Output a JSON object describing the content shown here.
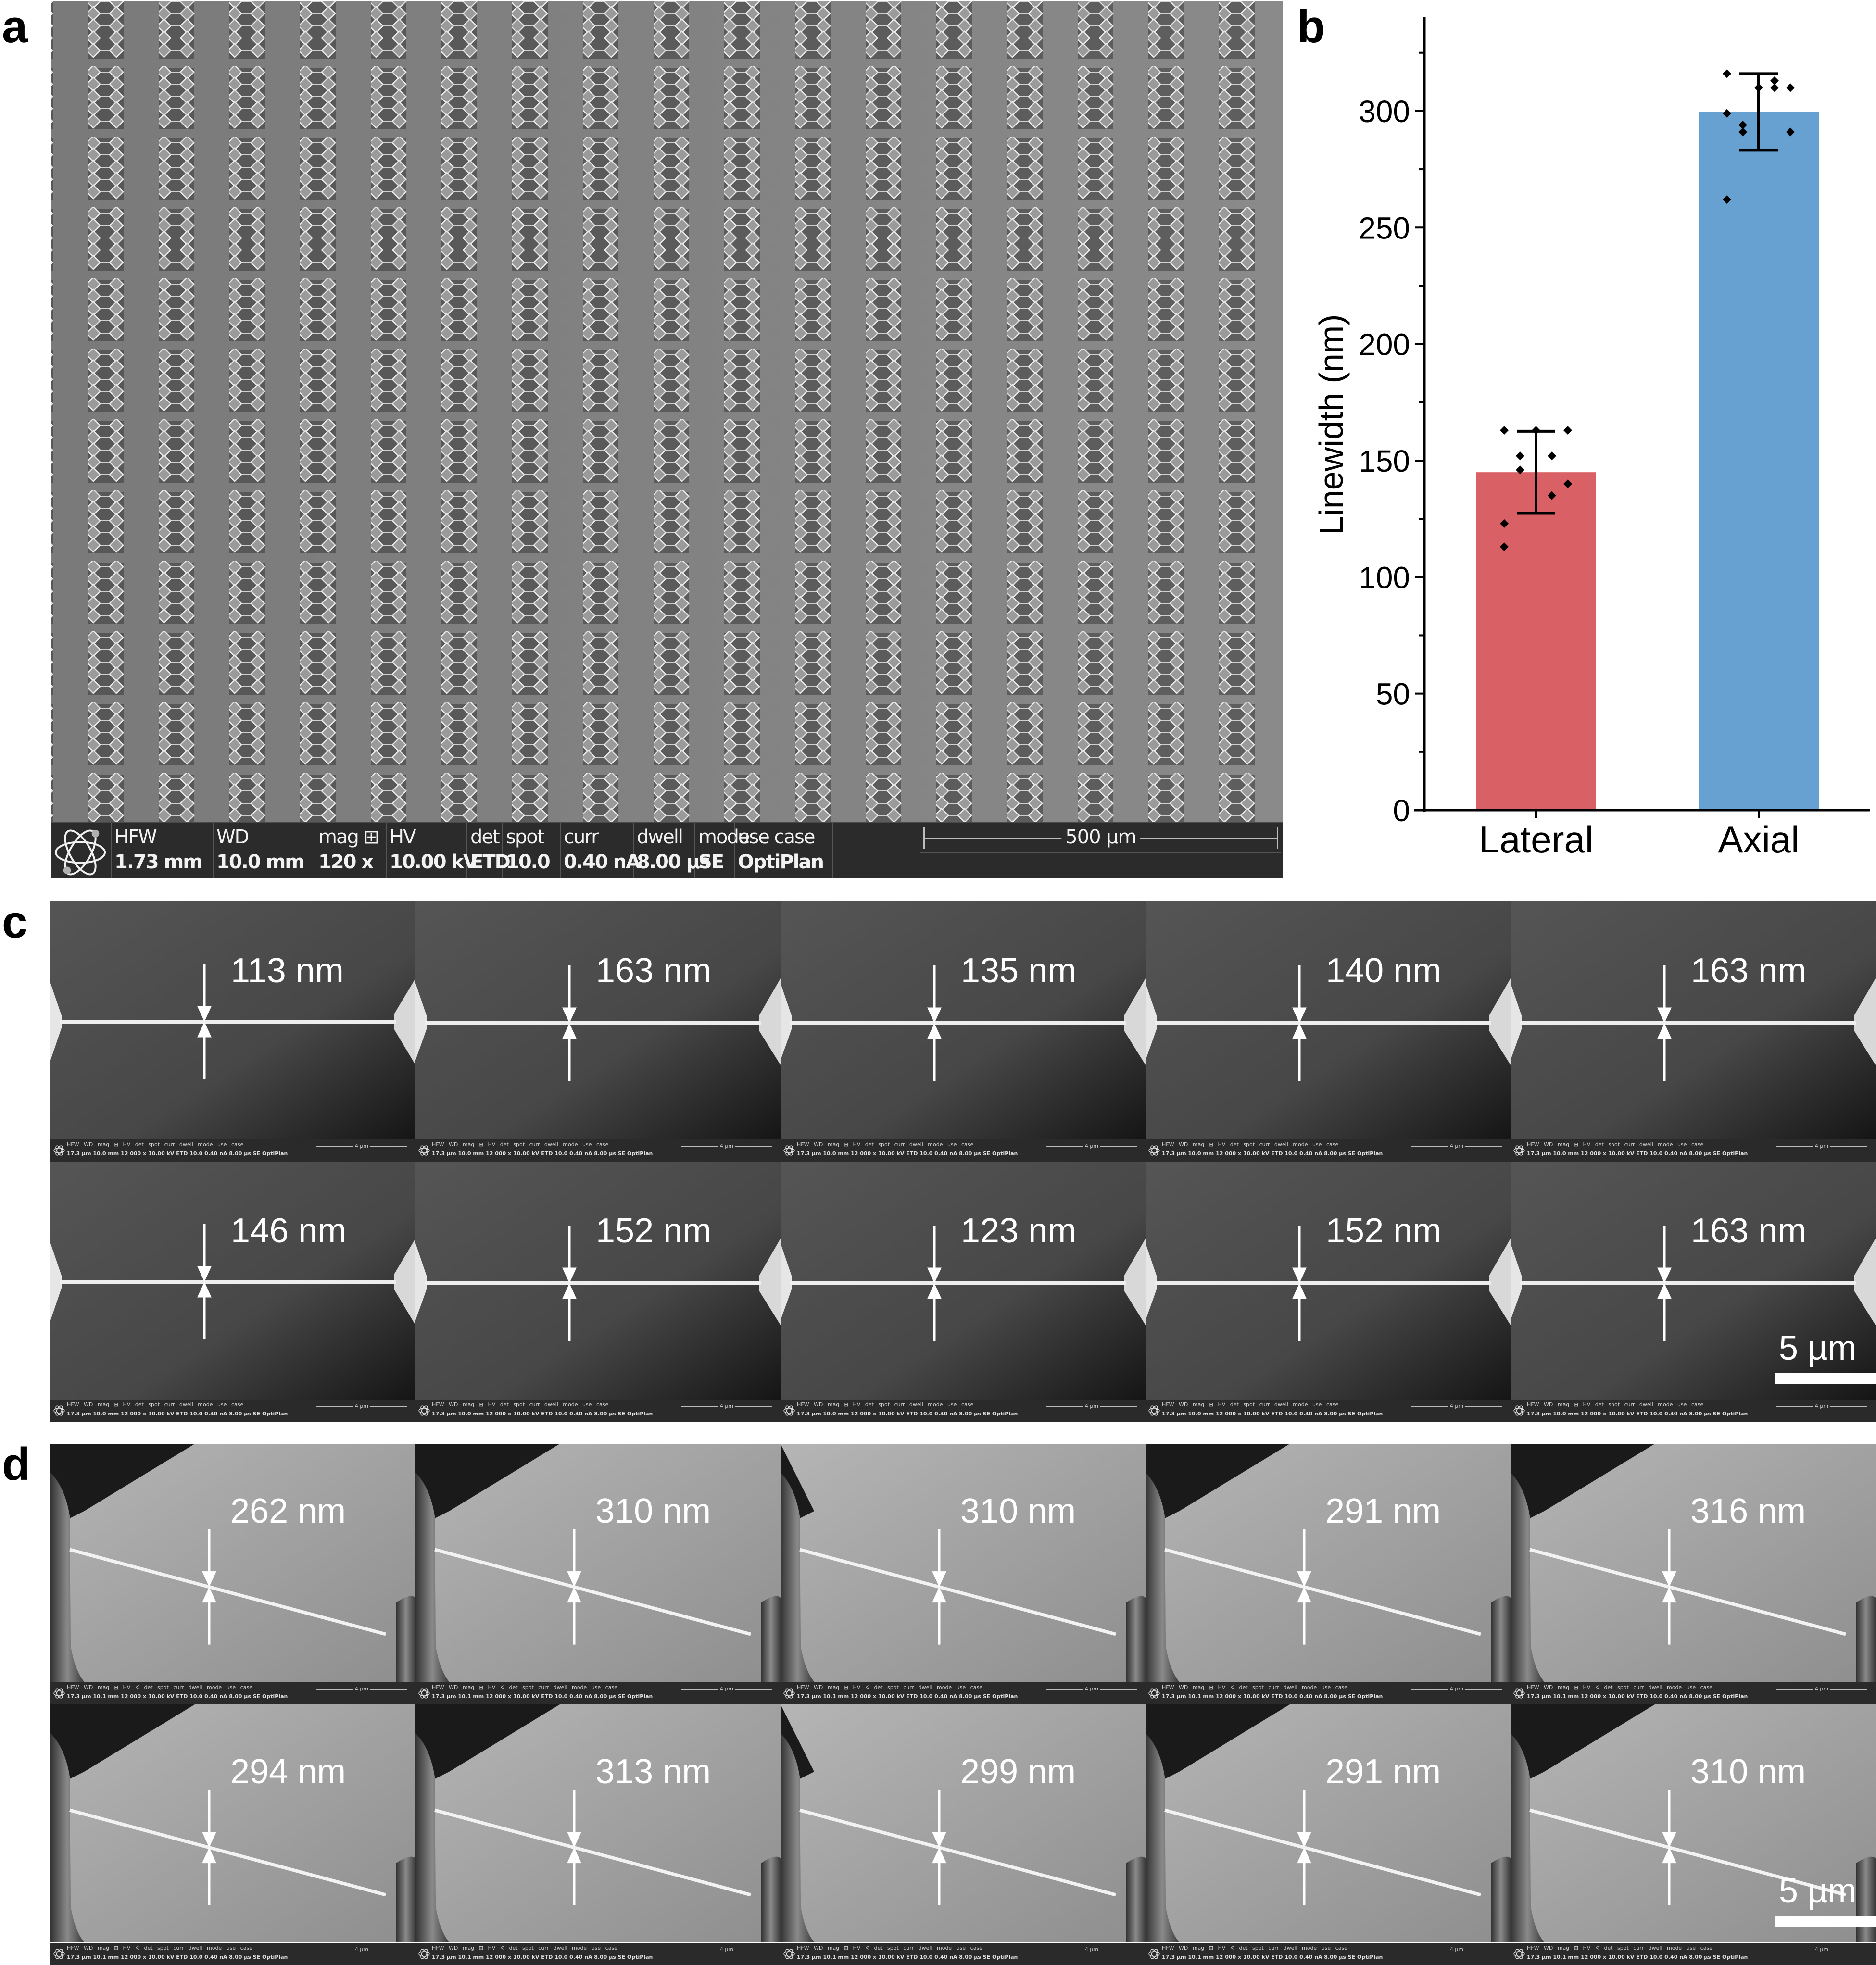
{
  "panel_labels": {
    "a": "a",
    "b": "b",
    "c": "c",
    "d": "d"
  },
  "panel_a": {
    "sem_info": {
      "fields": [
        {
          "label": "HFW",
          "value": "1.73 mm"
        },
        {
          "label": "WD",
          "value": "10.0 mm"
        },
        {
          "label": "mag ⊞",
          "value": "120 x"
        },
        {
          "label": "HV",
          "value": "10.00 kV"
        },
        {
          "label": "det",
          "value": "ETD"
        },
        {
          "label": "spot",
          "value": "10.0"
        },
        {
          "label": "curr",
          "value": "0.40 nA"
        },
        {
          "label": "dwell",
          "value": "8.00 µs"
        },
        {
          "label": "mode",
          "value": "SE"
        },
        {
          "label": "use case",
          "value": "OptiPlan"
        }
      ],
      "scale_bar": "500 µm",
      "logo_icon": "atom-icon"
    }
  },
  "chart_data": {
    "type": "bar",
    "title": "",
    "xlabel": "",
    "ylabel": "Linewidth (nm)",
    "categories": [
      "Lateral",
      "Axial"
    ],
    "values": [
      145,
      299.6
    ],
    "error": [
      17.6,
      16.4
    ],
    "colors": [
      "#d96166",
      "#66a1d2"
    ],
    "points": {
      "Lateral": [
        113,
        163,
        135,
        140,
        163,
        146,
        152,
        123,
        152,
        163
      ],
      "Axial": [
        262,
        310,
        310,
        291,
        316,
        294,
        313,
        299,
        291,
        310
      ]
    },
    "yticks": [
      0,
      50,
      100,
      150,
      200,
      250,
      300
    ],
    "ylim": [
      0,
      335
    ],
    "grid": false,
    "legend": "none"
  },
  "panel_c": {
    "measurements": [
      "113 nm",
      "163 nm",
      "135 nm",
      "140 nm",
      "163 nm",
      "146 nm",
      "152 nm",
      "123 nm",
      "152 nm",
      "163 nm"
    ],
    "scale_label": "5 µm",
    "sem_info_row1": "HFW    WD     mag  ⊞ HV       det  spot curr    dwell  mode use case",
    "sem_info_row2": "17.3 µm 10.0 mm 12 000 x 10.00 kV ETD 10.0 0.40 nA 8.00 µs SE    OptiPlan",
    "mini_scale": "4 µm"
  },
  "panel_d": {
    "measurements": [
      "262 nm",
      "310 nm",
      "310 nm",
      "291 nm",
      "316 nm",
      "294 nm",
      "313 nm",
      "299 nm",
      "291 nm",
      "310 nm"
    ],
    "scale_label": "5 µm",
    "sem_info_row1": "HFW    WD     mag  ⊞ HV    ∢ det spot curr    dwell  mode use case",
    "sem_info_row2": "17.3 µm 10.1 mm 12 000 x 10.00 kV ETD 10.0 0.40 nA 8.00 µs SE    OptiPlan",
    "mini_scale": "4 µm"
  }
}
